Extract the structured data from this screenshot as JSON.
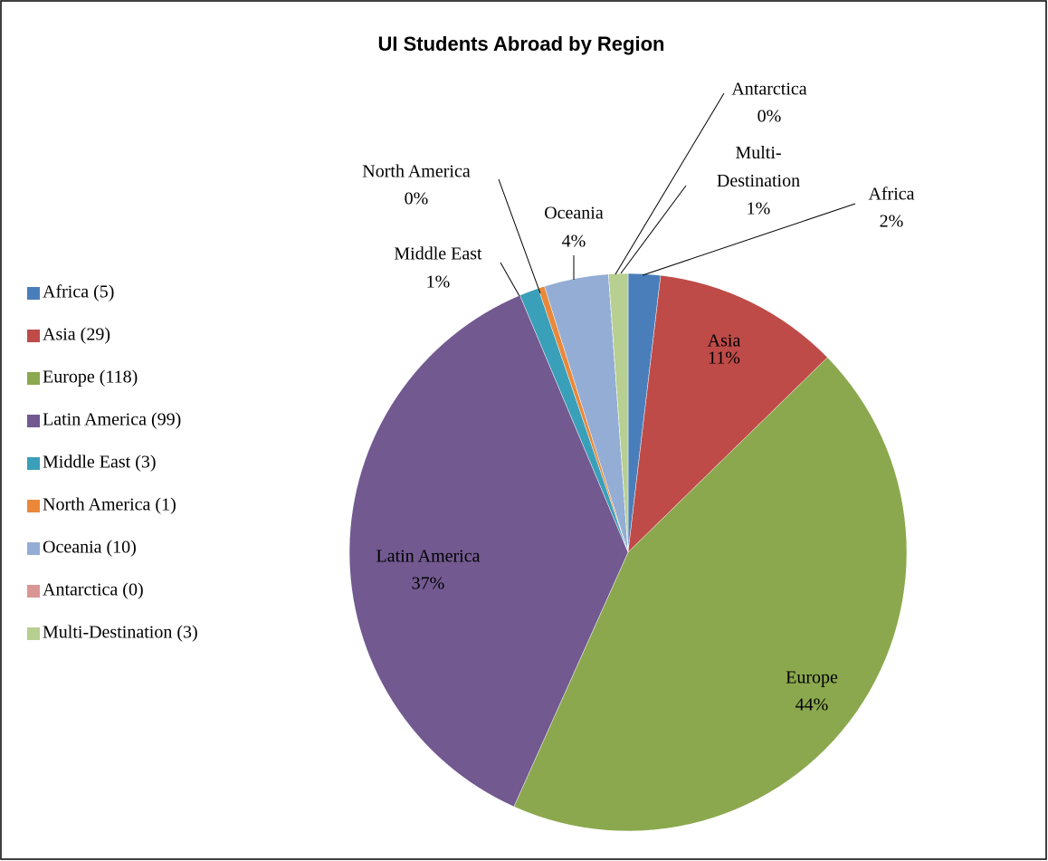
{
  "chart_data": {
    "type": "pie",
    "title": "UI Students Abroad by Region",
    "categories": [
      "Africa",
      "Asia",
      "Europe",
      "Latin America",
      "Middle East",
      "North America",
      "Oceania",
      "Antarctica",
      "Multi-Destination"
    ],
    "values": [
      5,
      29,
      118,
      99,
      3,
      1,
      10,
      0,
      3
    ],
    "legend_labels": [
      "Africa (5)",
      "Asia (29)",
      "Europe (118)",
      "Latin America (99)",
      "Middle East (3)",
      "North America (1)",
      "Oceania (10)",
      "Antarctica (0)",
      "Multi-Destination (3)"
    ],
    "percent_labels": [
      "2%",
      "11%",
      "44%",
      "37%",
      "1%",
      "0%",
      "4%",
      "0%",
      "1%"
    ],
    "colors": [
      "#4a7ebb",
      "#be4b48",
      "#8ba84e",
      "#725990",
      "#3a9fb9",
      "#e9883a",
      "#94add4",
      "#d99694",
      "#b7cf90"
    ],
    "legend": "left"
  }
}
